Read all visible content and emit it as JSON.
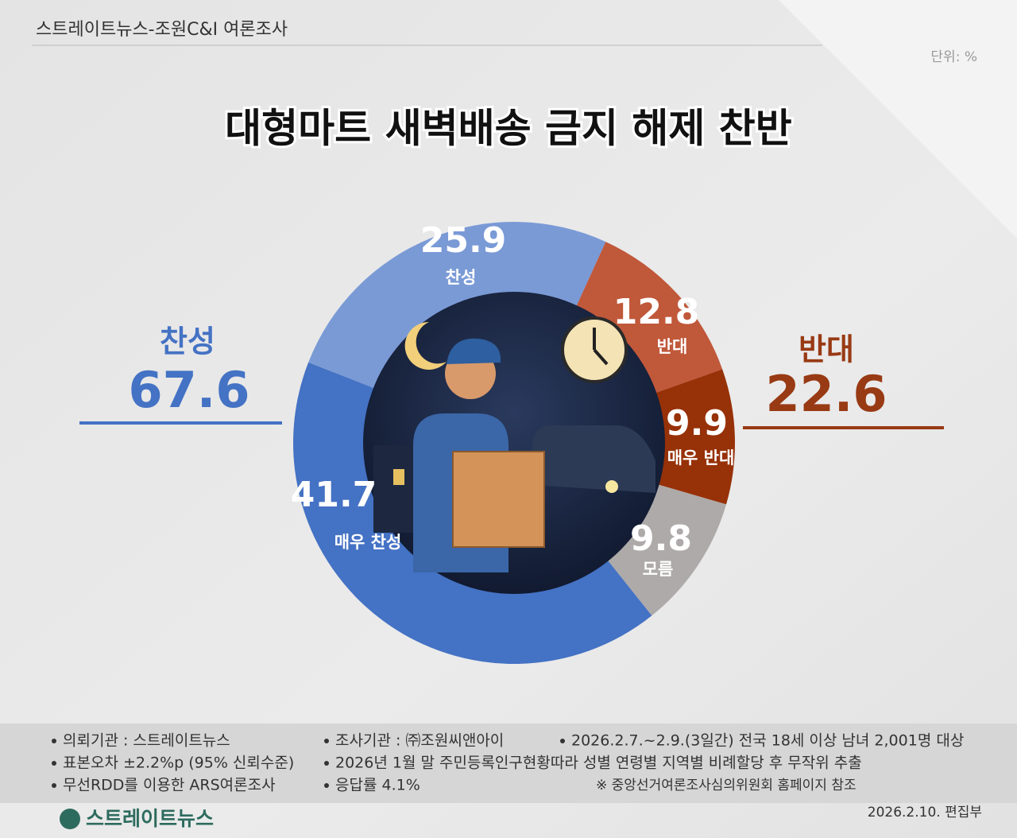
{
  "chart_data": {
    "type": "donut",
    "source": "스트레이트뉴스-조원C&I 여론조사",
    "unit": "단위: %",
    "title": "대형마트 새벽배송 금지 해제 찬반",
    "categories": [
      "매우 찬성",
      "찬성",
      "반대",
      "매우 반대",
      "모름"
    ],
    "values": [
      41.7,
      25.9,
      12.8,
      9.9,
      9.8
    ],
    "colors": [
      "#4472c4",
      "#7a9ad6",
      "#c0583a",
      "#973108",
      "#aeaaa9"
    ],
    "groups": [
      {
        "name": "찬성",
        "value": 67.6,
        "color": "#4472c4"
      },
      {
        "name": "반대",
        "value": 22.6,
        "color": "#983a14"
      }
    ],
    "notes": [
      "의뢰기관 : 스트레이트뉴스",
      "조사기관 : ㈜조원씨앤아이",
      "2026.2.7.~2.9.(3일간) 전국 18세 이상 남녀 2,001명 대상",
      "표본오차 ±2.2%p (95% 신뢰수준)",
      "2026년 1월 말 주민등록인구현황따라 성별 연령별 지역별 비례할당 후 무작위 추출",
      "무선RDD를 이용한 ARS여론조사",
      "응답률 4.1%"
    ],
    "reference": "※ 중앙선거여론조사심의위원회 홈페이지 참조",
    "date": "2026.2.10.  편집부",
    "logo": "스트레이트뉴스"
  }
}
